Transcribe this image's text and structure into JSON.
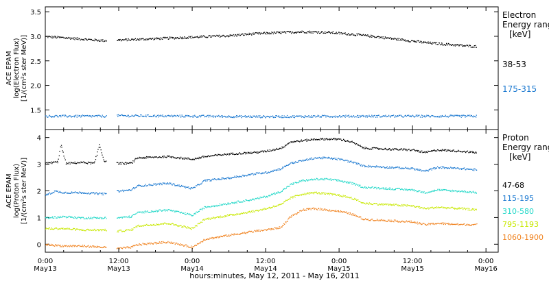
{
  "chart_data": [
    {
      "type": "scatter",
      "panel": "electron",
      "ylabel_lines": [
        "ACE EPAM",
        "log(Electron Flux)",
        "[1/(cm²s ster MeV)]"
      ],
      "ylim": [
        1.1,
        3.6
      ],
      "yticks": [
        1.5,
        2.0,
        2.5,
        3.0,
        3.5
      ],
      "ytick_labels": [
        "1.5",
        "2.0",
        "2.5",
        "3.0",
        "3.5"
      ],
      "grid": false,
      "legend": {
        "placement": "right",
        "title_lines": [
          "Electron",
          "Energy ranges",
          "[keV]"
        ]
      },
      "series": [
        {
          "name": "38-53",
          "color": "#000000",
          "gaps": [
            [
              9.9,
              11.6
            ]
          ],
          "values": [
            [
              0,
              3.0
            ],
            [
              3,
              2.98
            ],
            [
              6,
              2.95
            ],
            [
              9.5,
              2.92
            ],
            [
              11.6,
              2.93
            ],
            [
              14,
              2.94
            ],
            [
              18,
              2.96
            ],
            [
              22,
              2.98
            ],
            [
              26,
              3.0
            ],
            [
              30,
              3.02
            ],
            [
              34,
              3.06
            ],
            [
              38,
              3.08
            ],
            [
              42,
              3.1
            ],
            [
              46,
              3.09
            ],
            [
              50,
              3.05
            ],
            [
              54,
              3.0
            ],
            [
              58,
              2.94
            ],
            [
              62,
              2.88
            ],
            [
              66,
              2.84
            ],
            [
              69,
              2.81
            ],
            [
              70.5,
              2.8
            ]
          ]
        },
        {
          "name": "175-315",
          "color": "#1a78d0",
          "gaps": [
            [
              9.9,
              11.6
            ]
          ],
          "values": [
            [
              0,
              1.38
            ],
            [
              9.5,
              1.38
            ],
            [
              11.6,
              1.39
            ],
            [
              24,
              1.38
            ],
            [
              36,
              1.37
            ],
            [
              48,
              1.38
            ],
            [
              60,
              1.38
            ],
            [
              70.5,
              1.38
            ]
          ]
        }
      ]
    },
    {
      "type": "scatter",
      "panel": "proton",
      "ylabel_lines": [
        "ACE EPAM",
        "log(Proton Flux)",
        "[1/(cm²s ster MeV)]"
      ],
      "ylim": [
        -0.3,
        4.3
      ],
      "yticks": [
        0,
        1,
        2,
        3,
        4
      ],
      "ytick_labels": [
        "0",
        "1",
        "2",
        "3",
        "4"
      ],
      "grid": false,
      "legend": {
        "placement": "right",
        "title_lines": [
          "Proton",
          "Energy ranges",
          "[keV]"
        ]
      },
      "series": [
        {
          "name": "47-68",
          "color": "#000000",
          "gaps": [
            [
              9.9,
              11.6
            ]
          ],
          "values": [
            [
              0,
              3.05
            ],
            [
              2,
              3.1
            ],
            [
              2.5,
              3.75
            ],
            [
              3.3,
              3.05
            ],
            [
              6,
              3.08
            ],
            [
              8,
              3.05
            ],
            [
              8.8,
              3.75
            ],
            [
              9.5,
              3.15
            ],
            [
              11.6,
              3.05
            ],
            [
              14,
              3.05
            ],
            [
              15,
              3.25
            ],
            [
              20,
              3.3
            ],
            [
              24,
              3.2
            ],
            [
              26,
              3.3
            ],
            [
              30,
              3.4
            ],
            [
              34,
              3.45
            ],
            [
              36,
              3.5
            ],
            [
              38.5,
              3.62
            ],
            [
              40,
              3.85
            ],
            [
              42,
              3.9
            ],
            [
              44,
              3.95
            ],
            [
              46,
              3.96
            ],
            [
              48,
              3.95
            ],
            [
              50,
              3.85
            ],
            [
              52,
              3.62
            ],
            [
              56,
              3.58
            ],
            [
              60,
              3.55
            ],
            [
              62,
              3.45
            ],
            [
              64,
              3.55
            ],
            [
              68,
              3.5
            ],
            [
              70.5,
              3.45
            ]
          ]
        },
        {
          "name": "115-195",
          "color": "#1a78d0",
          "gaps": [
            [
              9.9,
              11.6
            ]
          ],
          "values": [
            [
              0,
              1.85
            ],
            [
              1.5,
              2.0
            ],
            [
              3,
              1.95
            ],
            [
              6,
              1.95
            ],
            [
              9.5,
              1.9
            ],
            [
              11.6,
              2.0
            ],
            [
              14,
              2.05
            ],
            [
              15,
              2.2
            ],
            [
              20,
              2.3
            ],
            [
              24,
              2.1
            ],
            [
              26,
              2.4
            ],
            [
              30,
              2.5
            ],
            [
              34,
              2.65
            ],
            [
              36,
              2.7
            ],
            [
              38.5,
              2.85
            ],
            [
              40,
              3.05
            ],
            [
              42,
              3.15
            ],
            [
              44,
              3.25
            ],
            [
              46,
              3.25
            ],
            [
              48,
              3.2
            ],
            [
              50,
              3.1
            ],
            [
              52,
              2.95
            ],
            [
              56,
              2.9
            ],
            [
              60,
              2.85
            ],
            [
              62,
              2.75
            ],
            [
              64,
              2.9
            ],
            [
              68,
              2.85
            ],
            [
              70.5,
              2.8
            ]
          ]
        },
        {
          "name": "310-580",
          "color": "#22d8c8",
          "gaps": [
            [
              9.9,
              11.6
            ]
          ],
          "values": [
            [
              0,
              1.0
            ],
            [
              3,
              1.05
            ],
            [
              6,
              1.0
            ],
            [
              9.5,
              1.0
            ],
            [
              11.6,
              1.0
            ],
            [
              14,
              1.05
            ],
            [
              15,
              1.2
            ],
            [
              20,
              1.3
            ],
            [
              24,
              1.1
            ],
            [
              26,
              1.4
            ],
            [
              30,
              1.55
            ],
            [
              34,
              1.7
            ],
            [
              36,
              1.8
            ],
            [
              38.5,
              2.0
            ],
            [
              40,
              2.25
            ],
            [
              42,
              2.4
            ],
            [
              44,
              2.45
            ],
            [
              46,
              2.45
            ],
            [
              48,
              2.4
            ],
            [
              50,
              2.3
            ],
            [
              52,
              2.15
            ],
            [
              56,
              2.1
            ],
            [
              60,
              2.05
            ],
            [
              62,
              1.95
            ],
            [
              64,
              2.05
            ],
            [
              68,
              2.0
            ],
            [
              70.5,
              1.95
            ]
          ]
        },
        {
          "name": "795-1193",
          "color": "#c8e800",
          "gaps": [
            [
              9.9,
              11.6
            ]
          ],
          "values": [
            [
              0,
              0.6
            ],
            [
              3,
              0.6
            ],
            [
              6,
              0.55
            ],
            [
              9.5,
              0.55
            ],
            [
              11.6,
              0.5
            ],
            [
              14,
              0.55
            ],
            [
              15,
              0.7
            ],
            [
              20,
              0.8
            ],
            [
              24,
              0.6
            ],
            [
              26,
              0.95
            ],
            [
              30,
              1.1
            ],
            [
              34,
              1.25
            ],
            [
              36,
              1.35
            ],
            [
              38.5,
              1.5
            ],
            [
              40,
              1.75
            ],
            [
              42,
              1.9
            ],
            [
              44,
              1.95
            ],
            [
              46,
              1.9
            ],
            [
              48,
              1.85
            ],
            [
              50,
              1.75
            ],
            [
              52,
              1.55
            ],
            [
              56,
              1.5
            ],
            [
              60,
              1.45
            ],
            [
              62,
              1.35
            ],
            [
              64,
              1.4
            ],
            [
              68,
              1.35
            ],
            [
              70.5,
              1.3
            ]
          ]
        },
        {
          "name": "1060-1900",
          "color": "#f0821e",
          "gaps": [
            [
              9.9,
              11.6
            ]
          ],
          "values": [
            [
              0,
              0.0
            ],
            [
              3,
              -0.05
            ],
            [
              6,
              -0.05
            ],
            [
              9.5,
              -0.1
            ],
            [
              11.6,
              -0.15
            ],
            [
              14,
              -0.1
            ],
            [
              15,
              0.0
            ],
            [
              20,
              0.1
            ],
            [
              24,
              -0.1
            ],
            [
              26,
              0.2
            ],
            [
              30,
              0.35
            ],
            [
              34,
              0.5
            ],
            [
              36,
              0.55
            ],
            [
              38.5,
              0.65
            ],
            [
              40,
              1.05
            ],
            [
              42,
              1.3
            ],
            [
              44,
              1.35
            ],
            [
              46,
              1.3
            ],
            [
              48,
              1.25
            ],
            [
              50,
              1.15
            ],
            [
              52,
              0.95
            ],
            [
              56,
              0.9
            ],
            [
              60,
              0.85
            ],
            [
              62,
              0.75
            ],
            [
              64,
              0.8
            ],
            [
              68,
              0.75
            ],
            [
              70.5,
              0.75
            ]
          ]
        }
      ]
    }
  ],
  "x_axis": {
    "xlim_hours": [
      0,
      74
    ],
    "ticks_hours": [
      0,
      12,
      24,
      36,
      48,
      60,
      72
    ],
    "tick_labels": [
      [
        "0:00",
        "May13"
      ],
      [
        "12:00",
        "May13"
      ],
      [
        "0:00",
        "May14"
      ],
      [
        "12:00",
        "May14"
      ],
      [
        "0:00",
        "May15"
      ],
      [
        "12:00",
        "May15"
      ],
      [
        "0:00",
        "May16"
      ]
    ],
    "xlabel": "hours:minutes, May 12, 2011 - May 16, 2011"
  }
}
